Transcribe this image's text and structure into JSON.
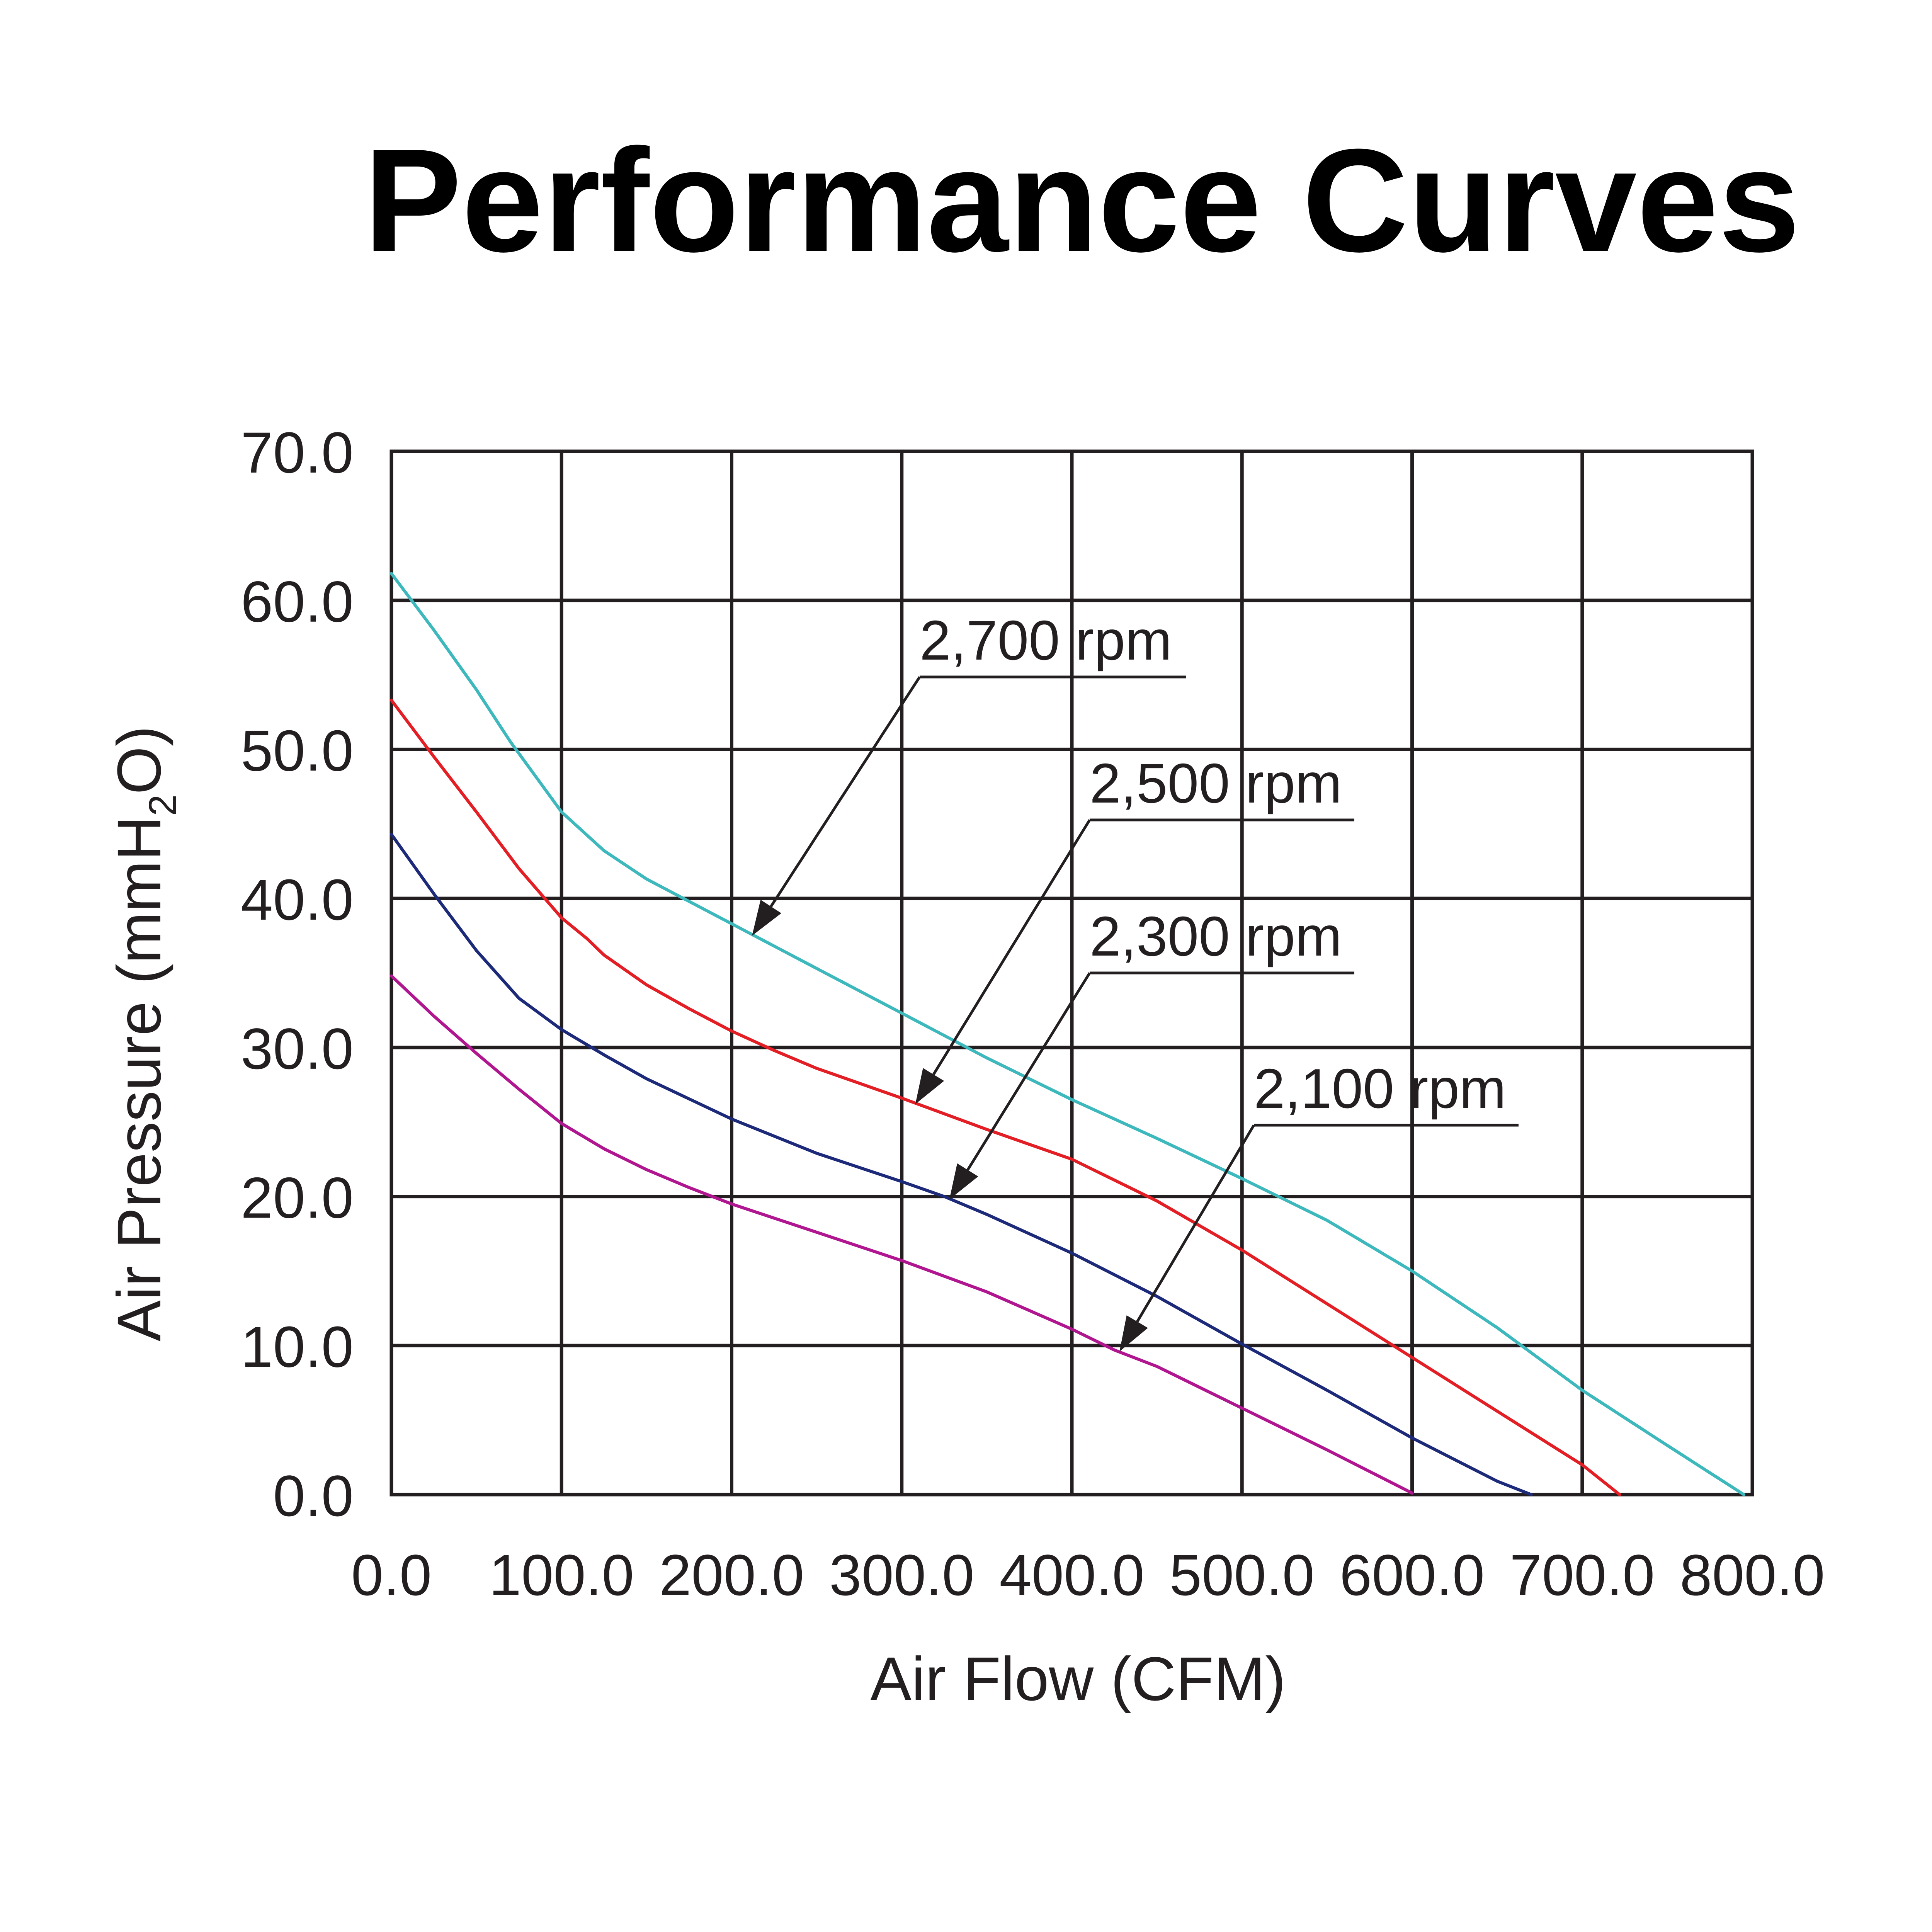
{
  "chart_data": {
    "type": "line",
    "title": "Performance Curves",
    "xlabel": "Air Flow (CFM)",
    "ylabel": "Air Pressure (mmH2O)",
    "ylabel_parts": {
      "main": "Air Pressure (mmH",
      "sub": "2",
      "end": "O)"
    },
    "xlim": [
      0,
      800
    ],
    "ylim": [
      0,
      70
    ],
    "grid": true,
    "x_ticks": [
      "0.0",
      "100.0",
      "200.0",
      "300.0",
      "400.0",
      "500.0",
      "600.0",
      "700.0",
      "800.0"
    ],
    "y_ticks": [
      "0.0",
      "10.0",
      "20.0",
      "30.0",
      "40.0",
      "50.0",
      "60.0",
      "70.0"
    ],
    "series": [
      {
        "name": "2,700 rpm",
        "color": "#3db8bc",
        "points": [
          [
            0,
            61.8
          ],
          [
            25,
            58
          ],
          [
            50,
            54
          ],
          [
            70,
            50.5
          ],
          [
            100,
            45.8
          ],
          [
            125,
            43.2
          ],
          [
            150,
            41.3
          ],
          [
            200,
            38.3
          ],
          [
            250,
            35.3
          ],
          [
            300,
            32.3
          ],
          [
            350,
            29.3
          ],
          [
            400,
            26.5
          ],
          [
            450,
            23.9
          ],
          [
            500,
            21.2
          ],
          [
            550,
            18.4
          ],
          [
            600,
            15
          ],
          [
            650,
            11.2
          ],
          [
            700,
            7
          ],
          [
            750,
            3.3
          ],
          [
            795,
            0
          ]
        ],
        "annotation": {
          "label": "2,700 rpm",
          "arrow_to": [
            212,
            37.5
          ]
        }
      },
      {
        "name": "2,500 rpm",
        "color": "#e31e24",
        "points": [
          [
            0,
            53.3
          ],
          [
            25,
            49.5
          ],
          [
            50,
            45.8
          ],
          [
            75,
            42
          ],
          [
            100,
            38.7
          ],
          [
            115,
            37.3
          ],
          [
            125,
            36.2
          ],
          [
            150,
            34.2
          ],
          [
            175,
            32.6
          ],
          [
            200,
            31.1
          ],
          [
            225,
            29.8
          ],
          [
            250,
            28.6
          ],
          [
            275,
            27.6
          ],
          [
            300,
            26.6
          ],
          [
            350,
            24.5
          ],
          [
            400,
            22.5
          ],
          [
            450,
            19.7
          ],
          [
            500,
            16.4
          ],
          [
            550,
            12.8
          ],
          [
            600,
            9.2
          ],
          [
            650,
            5.6
          ],
          [
            700,
            2
          ],
          [
            722,
            0
          ]
        ],
        "annotation": {
          "label": "2,500 rpm",
          "arrow_to": [
            308,
            26.2
          ]
        }
      },
      {
        "name": "2,300 rpm",
        "color": "#1d2a7a",
        "points": [
          [
            0,
            44.3
          ],
          [
            25,
            40.3
          ],
          [
            50,
            36.5
          ],
          [
            75,
            33.3
          ],
          [
            100,
            31.2
          ],
          [
            125,
            29.5
          ],
          [
            150,
            27.9
          ],
          [
            200,
            25.2
          ],
          [
            250,
            22.9
          ],
          [
            300,
            21
          ],
          [
            325,
            20
          ],
          [
            350,
            18.8
          ],
          [
            400,
            16.2
          ],
          [
            450,
            13.3
          ],
          [
            500,
            10.1
          ],
          [
            550,
            7
          ],
          [
            600,
            3.8
          ],
          [
            650,
            0.9
          ],
          [
            670,
            0
          ]
        ],
        "annotation": {
          "label": "2,300 rpm",
          "arrow_to": [
            328,
            19.8
          ]
        }
      },
      {
        "name": "2,100 rpm",
        "color": "#b0168f",
        "points": [
          [
            0,
            34.8
          ],
          [
            25,
            32.1
          ],
          [
            50,
            29.6
          ],
          [
            75,
            27.2
          ],
          [
            100,
            24.9
          ],
          [
            125,
            23.2
          ],
          [
            150,
            21.8
          ],
          [
            175,
            20.6
          ],
          [
            200,
            19.5
          ],
          [
            250,
            17.6
          ],
          [
            300,
            15.7
          ],
          [
            350,
            13.6
          ],
          [
            400,
            11.1
          ],
          [
            425,
            9.7
          ],
          [
            450,
            8.6
          ],
          [
            500,
            5.8
          ],
          [
            550,
            3
          ],
          [
            600,
            0.1
          ]
        ],
        "annotation": {
          "label": "2,100 rpm",
          "arrow_to": [
            428,
            9.6
          ]
        }
      }
    ]
  }
}
